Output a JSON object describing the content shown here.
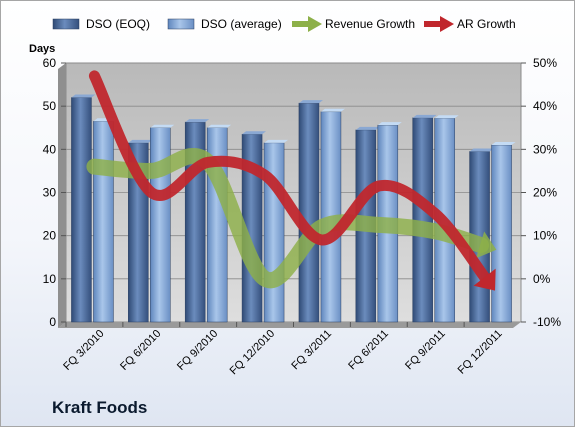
{
  "page_title": "Kraft Foods",
  "chart_data": {
    "type": "bar",
    "categories": [
      "FQ 3/2010",
      "FQ 6/2010",
      "FQ 9/2010",
      "FQ 12/2010",
      "FQ 3/2011",
      "FQ 6/2011",
      "FQ 9/2011",
      "FQ 12/2011"
    ],
    "series": [
      {
        "name": "DSO (EOQ)",
        "type": "bar",
        "axis": "left",
        "color": "#4f6e9e",
        "values": [
          52,
          41.5,
          46.3,
          43.5,
          50.7,
          44.5,
          47.3,
          39.5
        ]
      },
      {
        "name": "DSO (average)",
        "type": "bar",
        "axis": "left",
        "color": "#8fb0da",
        "values": [
          46.5,
          45,
          45,
          41.5,
          48.7,
          45.6,
          47.2,
          41
        ]
      },
      {
        "name": "Revenue Growth",
        "type": "line",
        "axis": "right",
        "color": "#8db049",
        "values": [
          0.26,
          0.25,
          0.27,
          0.0,
          0.12,
          0.125,
          0.11,
          0.07
        ]
      },
      {
        "name": "AR Growth",
        "type": "line",
        "axis": "right",
        "color": "#c0272d",
        "values": [
          0.47,
          0.2,
          0.27,
          0.24,
          0.09,
          0.215,
          0.15,
          -0.02
        ]
      }
    ],
    "ylabel": "Days",
    "ylim": [
      0,
      60
    ],
    "yticks": [
      0,
      10,
      20,
      30,
      40,
      50,
      60
    ],
    "y2lim": [
      -0.1,
      0.5
    ],
    "y2ticks": [
      "-10%",
      "0%",
      "10%",
      "20%",
      "30%",
      "40%",
      "50%"
    ],
    "grid": true,
    "legend_position": "top"
  }
}
